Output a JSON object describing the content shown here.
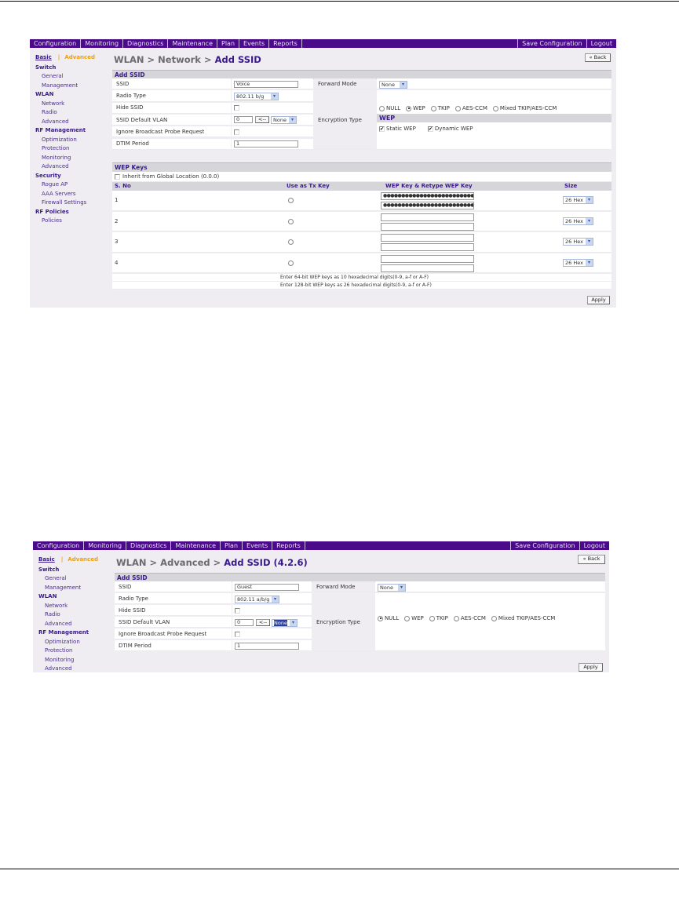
{
  "screens": [
    {
      "nav": {
        "items": [
          "Configuration",
          "Monitoring",
          "Diagnostics",
          "Maintenance",
          "Plan",
          "Events",
          "Reports"
        ],
        "right": [
          "Save Configuration",
          "Logout"
        ]
      },
      "sidebar": {
        "basic": "Basic",
        "separator": "|",
        "advanced": "Advanced",
        "groups": [
          {
            "title": "Switch",
            "items": [
              "General",
              "Management"
            ]
          },
          {
            "title": "WLAN",
            "items": [
              "Network",
              "Radio",
              "Advanced"
            ]
          },
          {
            "title": "RF Management",
            "items": [
              "Optimization",
              "Protection",
              "Monitoring",
              "Advanced"
            ]
          },
          {
            "title": "Security",
            "items": [
              "Rogue AP",
              "AAA Servers",
              "Firewall Settings"
            ]
          },
          {
            "title": "RF Policies",
            "items": [
              "Policies"
            ]
          }
        ]
      },
      "title": {
        "path": "WLAN > Network > ",
        "current": "Add SSID"
      },
      "back": "« Back",
      "form": {
        "header": "Add SSID",
        "ssid": {
          "label": "SSID",
          "value": "Voice"
        },
        "radio_type": {
          "label": "Radio Type",
          "value": "802.11 b/g"
        },
        "hide_ssid": {
          "label": "Hide SSID",
          "checked": false
        },
        "vlan": {
          "label": "SSID Default VLAN",
          "value": "0",
          "button": "<--",
          "select": "None"
        },
        "ignore_probe": {
          "label": "Ignore Broadcast Probe Request",
          "checked": false
        },
        "dtim": {
          "label": "DTIM Period",
          "value": "1"
        },
        "forward_mode": {
          "label": "Forward Mode",
          "value": "None"
        },
        "encryption": {
          "label": "Encryption Type",
          "options": [
            "NULL",
            "WEP",
            "TKIP",
            "AES-CCM",
            "Mixed TKIP/AES-CCM"
          ],
          "selected": "WEP",
          "wep": {
            "header": "WEP",
            "static": "Static WEP",
            "static_checked": true,
            "dynamic": "Dynamic WEP",
            "dynamic_checked": true
          }
        }
      },
      "wep_keys": {
        "header": "WEP Keys",
        "inherit": "Inherit from Global Location (0.0.0)",
        "inherit_checked": false,
        "columns": [
          "S. No",
          "Use as Tx Key",
          "WEP Key & Retype WEP Key",
          "Size"
        ],
        "rows": [
          {
            "no": "1",
            "key": "●●●●●●●●●●●●●●●●●●●●●●●●●●",
            "retype": "●●●●●●●●●●●●●●●●●●●●●●●●●●",
            "size": "26 Hex"
          },
          {
            "no": "2",
            "key": "",
            "retype": "",
            "size": "26 Hex"
          },
          {
            "no": "3",
            "key": "",
            "retype": "",
            "size": "26 Hex"
          },
          {
            "no": "4",
            "key": "",
            "retype": "",
            "size": "26 Hex"
          }
        ],
        "notes": [
          "Enter 64-bit WEP keys as 10 hexadecimal digits(0-9, a-f or A-F)",
          "Enter 128-bit WEP keys as 26 hexadecimal digits(0-9, a-f or A-F)"
        ]
      },
      "apply": "Apply"
    },
    {
      "nav": {
        "items": [
          "Configuration",
          "Monitoring",
          "Diagnostics",
          "Maintenance",
          "Plan",
          "Events",
          "Reports"
        ],
        "right": [
          "Save Configuration",
          "Logout"
        ]
      },
      "sidebar": {
        "basic": "Basic",
        "separator": "|",
        "advanced": "Advanced",
        "groups": [
          {
            "title": "Switch",
            "items": [
              "General",
              "Management"
            ]
          },
          {
            "title": "WLAN",
            "items": [
              "Network",
              "Radio",
              "Advanced"
            ]
          },
          {
            "title": "RF Management",
            "items": [
              "Optimization",
              "Protection",
              "Monitoring",
              "Advanced"
            ]
          }
        ]
      },
      "title": {
        "path": "WLAN > Advanced > ",
        "current": "Add SSID (4.2.6)"
      },
      "back": "« Back",
      "form": {
        "header": "Add SSID",
        "ssid": {
          "label": "SSID",
          "value": "Guest"
        },
        "radio_type": {
          "label": "Radio Type",
          "value": "802.11 a/b/g"
        },
        "hide_ssid": {
          "label": "Hide SSID",
          "checked": false
        },
        "vlan": {
          "label": "SSID Default VLAN",
          "value": "0",
          "button": "<--",
          "select": "None"
        },
        "ignore_probe": {
          "label": "Ignore Broadcast Probe Request",
          "checked": false
        },
        "dtim": {
          "label": "DTIM Period",
          "value": "1"
        },
        "forward_mode": {
          "label": "Forward Mode",
          "value": "None"
        },
        "encryption": {
          "label": "Encryption Type",
          "options": [
            "NULL",
            "WEP",
            "TKIP",
            "AES-CCM",
            "Mixed TKIP/AES-CCM"
          ],
          "selected": "NULL"
        }
      },
      "apply": "Apply"
    }
  ]
}
